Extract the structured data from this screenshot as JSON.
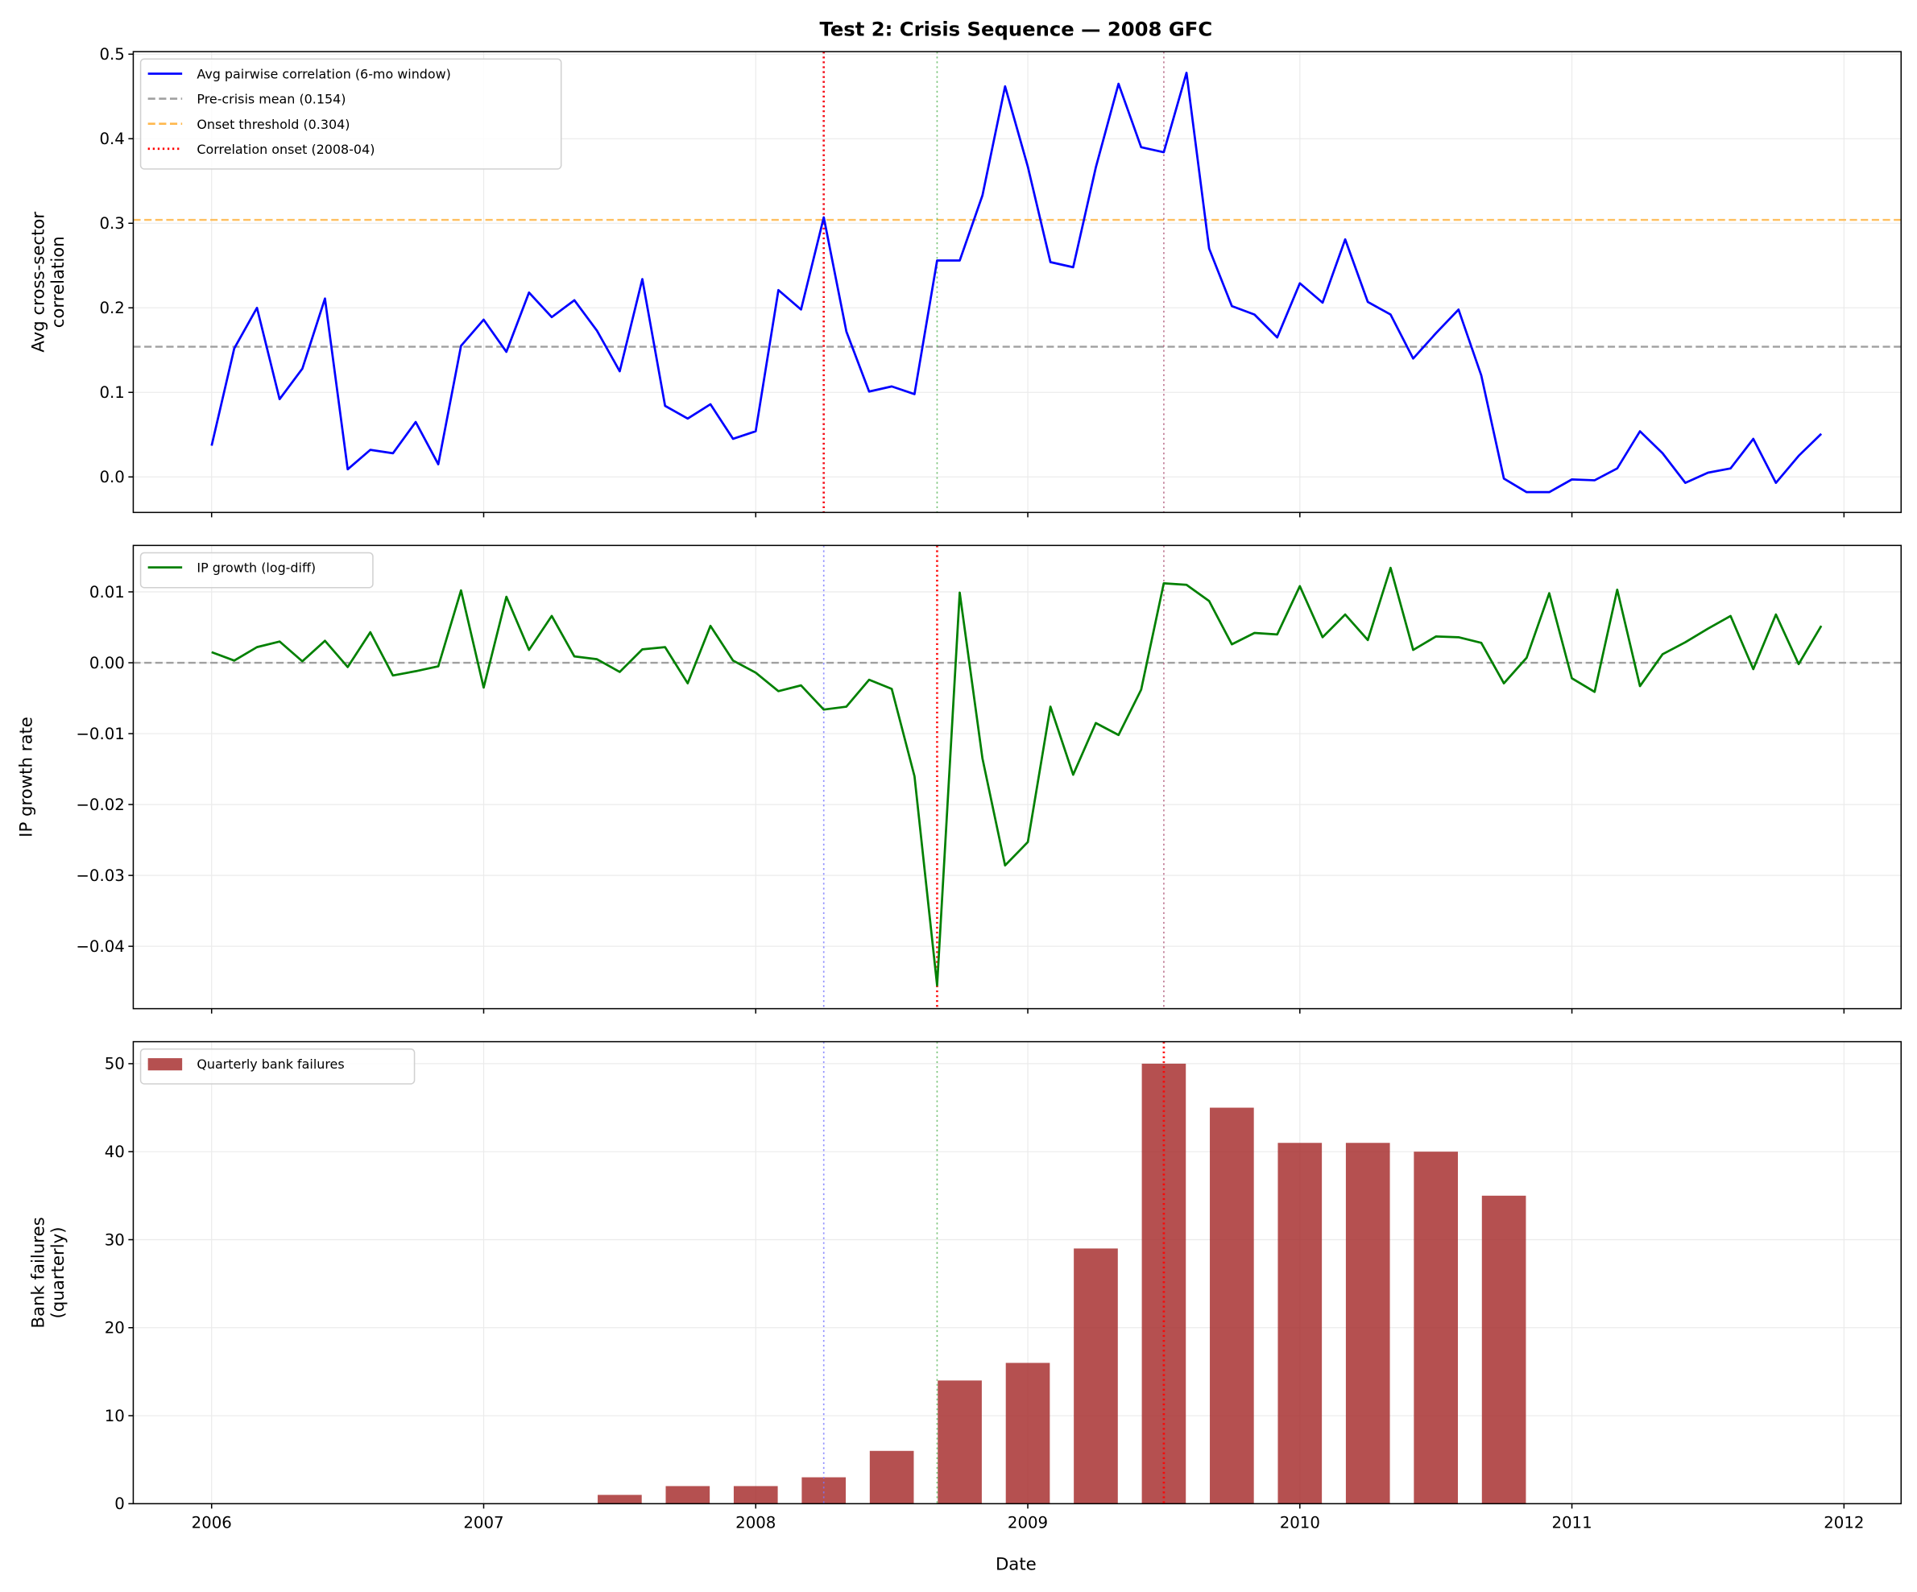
{
  "chart_data": [
    {
      "type": "line",
      "title": "Test 2: Crisis Sequence — 2008 GFC",
      "ylabel": [
        "Avg cross-sector",
        "correlation"
      ],
      "ylim": [
        -0.042,
        0.503
      ],
      "yticks": [
        "0.0",
        "0.1",
        "0.2",
        "0.3",
        "0.4",
        "0.5"
      ],
      "ytick_values": [
        0,
        0.1,
        0.2,
        0.3,
        0.4,
        0.5
      ],
      "grid": true,
      "legend_placement": "upper-left",
      "start": "2006-01",
      "series": [
        {
          "name": "Avg pairwise correlation (6-mo window)",
          "color": "#0000ff",
          "style": "solid",
          "values": [
            0.037,
            0.152,
            0.2,
            0.092,
            0.128,
            0.211,
            0.009,
            0.032,
            0.028,
            0.065,
            0.015,
            0.155,
            0.186,
            0.148,
            0.218,
            0.189,
            0.209,
            0.173,
            0.125,
            0.234,
            0.084,
            0.069,
            0.086,
            0.045,
            0.054,
            0.221,
            0.198,
            0.307,
            0.172,
            0.101,
            0.107,
            0.098,
            0.256,
            0.256,
            0.333,
            0.462,
            0.367,
            0.254,
            0.248,
            0.366,
            0.465,
            0.39,
            0.384,
            0.478,
            0.27,
            0.202,
            0.192,
            0.165,
            0.229,
            0.206,
            0.281,
            0.207,
            0.192,
            0.14,
            0.17,
            0.198,
            0.12,
            -0.002,
            -0.018,
            -0.018,
            -0.003,
            -0.004,
            0.01,
            0.054,
            0.028,
            -0.007,
            0.005,
            0.01,
            0.045,
            -0.007,
            0.025,
            0.051
          ]
        }
      ],
      "hlines": [
        {
          "name": "Pre-crisis mean (0.154)",
          "y": 0.154,
          "color": "#a0a0a0",
          "style": "dashed"
        },
        {
          "name": "Onset threshold (0.304)",
          "y": 0.304,
          "color": "#ffb84d",
          "style": "dashed"
        }
      ],
      "vlines": [
        {
          "name": "Correlation onset (2008-04)",
          "x": "2008-04",
          "color": "#ff0000",
          "style": "dotted",
          "legend": true
        },
        {
          "x": "2008-04",
          "color": "#7777ff",
          "style": "dotted"
        },
        {
          "x": "2008-09",
          "color": "#5cb85c",
          "style": "dotted"
        },
        {
          "x": "2009-07",
          "color": "#b05a7a",
          "style": "dotted"
        }
      ]
    },
    {
      "type": "line",
      "ylabel": [
        "IP growth rate"
      ],
      "ylim": [
        -0.0488,
        0.01655
      ],
      "yticks": [
        "−0.04",
        "−0.03",
        "−0.02",
        "−0.01",
        "0.00",
        "0.01"
      ],
      "ytick_values": [
        -0.04,
        -0.03,
        -0.02,
        -0.01,
        0,
        0.01
      ],
      "grid": true,
      "legend_placement": "upper-left",
      "start": "2006-01",
      "series": [
        {
          "name": "IP growth (log-diff)",
          "color": "#008000",
          "style": "solid",
          "values": [
            0.0015,
            0.0003,
            0.0022,
            0.003,
            0.0002,
            0.0031,
            -0.0006,
            0.0043,
            -0.0018,
            -0.0012,
            -0.0005,
            0.0102,
            -0.0035,
            0.0093,
            0.0018,
            0.0066,
            0.0009,
            0.0005,
            -0.0013,
            0.0019,
            0.0022,
            -0.0029,
            0.0052,
            0.0003,
            -0.0014,
            -0.004,
            -0.0032,
            -0.0066,
            -0.0062,
            -0.0024,
            -0.0037,
            -0.016,
            -0.0455,
            0.0099,
            -0.0135,
            -0.0286,
            -0.0253,
            -0.0062,
            -0.0158,
            -0.0085,
            -0.0102,
            -0.0038,
            0.0112,
            0.011,
            0.0087,
            0.0026,
            0.0042,
            0.004,
            0.0108,
            0.0036,
            0.0068,
            0.0032,
            0.0134,
            0.0018,
            0.0037,
            0.0036,
            0.0028,
            -0.0029,
            0.0007,
            0.0098,
            -0.0022,
            -0.0041,
            0.0103,
            -0.0033,
            0.0012,
            0.0029,
            0.0048,
            0.0066,
            -0.0009,
            0.0068,
            -0.0002,
            0.0052
          ]
        }
      ],
      "hlines": [
        {
          "y": 0,
          "color": "#a0a0a0",
          "style": "dashed"
        }
      ],
      "vlines": [
        {
          "x": "2008-04",
          "color": "#7777ff",
          "style": "dotted"
        },
        {
          "x": "2008-09",
          "color": "#ff0000",
          "style": "dotted"
        },
        {
          "x": "2009-07",
          "color": "#b05a7a",
          "style": "dotted"
        }
      ]
    },
    {
      "type": "bar",
      "xlabel": "Date",
      "ylabel": [
        "Bank failures",
        "(quarterly)"
      ],
      "ylim": [
        0,
        52.5
      ],
      "yticks": [
        "0",
        "10",
        "20",
        "30",
        "40",
        "50"
      ],
      "ytick_values": [
        0,
        10,
        20,
        30,
        40,
        50
      ],
      "grid": true,
      "legend_placement": "upper-left",
      "series": [
        {
          "name": "Quarterly bank failures",
          "color": "#a52a2a",
          "x": [
            "2007-07",
            "2007-10",
            "2008-01",
            "2008-04",
            "2008-07",
            "2008-10",
            "2009-01",
            "2009-04",
            "2009-07",
            "2009-10",
            "2010-01",
            "2010-04",
            "2010-07",
            "2010-10"
          ],
          "values": [
            1,
            2,
            2,
            3,
            6,
            14,
            16,
            29,
            50,
            45,
            41,
            41,
            40,
            35
          ]
        }
      ],
      "vlines": [
        {
          "x": "2008-04",
          "color": "#7777ff",
          "style": "dotted"
        },
        {
          "x": "2008-09",
          "color": "#5cb85c",
          "style": "dotted"
        },
        {
          "x": "2009-07",
          "color": "#ff0000",
          "style": "dotted"
        }
      ]
    }
  ],
  "xaxis": {
    "xlim": [
      2005.712,
      2012.21
    ],
    "ticks": [
      "2006",
      "2007",
      "2008",
      "2009",
      "2010",
      "2011",
      "2012"
    ],
    "tick_values": [
      2006,
      2007,
      2008,
      2009,
      2010,
      2011,
      2012
    ]
  }
}
